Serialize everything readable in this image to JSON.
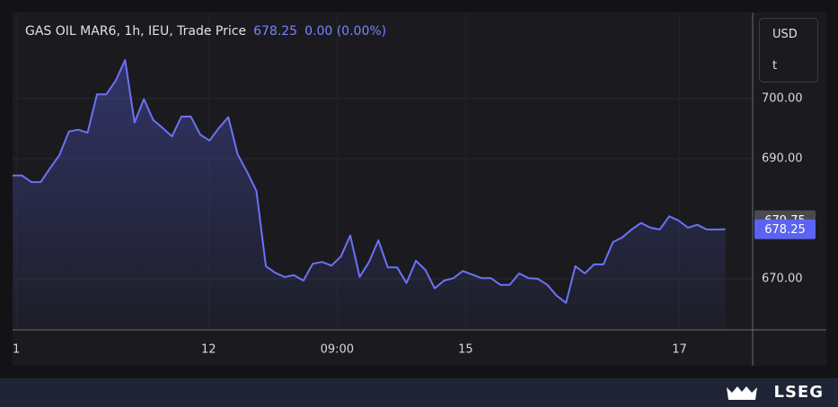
{
  "chart_data": {
    "type": "line",
    "title": "GAS OIL MAR6, 1h, IEU, Trade Price",
    "last_price": "678.25",
    "change": "0.00 (0.00%)",
    "currency": "USD",
    "unit": "t",
    "x": [
      0,
      1,
      2,
      3,
      4,
      5,
      6,
      7,
      8,
      9,
      10,
      11,
      12,
      13,
      14,
      15,
      16,
      17,
      18,
      19,
      20,
      21,
      22,
      23,
      24,
      25,
      26,
      27,
      28,
      29,
      30,
      31,
      32,
      33,
      34,
      35,
      36,
      37,
      38,
      39,
      40,
      41,
      42,
      43,
      44,
      45,
      46,
      47,
      48,
      49,
      50,
      51,
      52,
      53,
      54,
      55,
      56,
      57,
      58,
      59,
      60,
      61,
      62,
      63,
      64,
      65,
      66,
      67,
      68,
      69,
      70,
      71,
      72,
      73,
      74,
      75,
      76
    ],
    "series": [
      {
        "name": "Trade Price",
        "color": "#6b72f5",
        "values": [
          687.2,
          687.2,
          686.1,
          686.1,
          688.4,
          690.6,
          694.5,
          694.8,
          694.3,
          700.7,
          700.7,
          703.0,
          706.4,
          696.0,
          699.9,
          696.4,
          695.1,
          693.7,
          697.0,
          697.0,
          694.0,
          693.0,
          695.1,
          696.9,
          690.7,
          687.8,
          684.6,
          672.1,
          671.0,
          670.3,
          670.6,
          669.7,
          672.5,
          672.8,
          672.2,
          673.7,
          677.2,
          670.3,
          672.8,
          676.4,
          671.9,
          671.9,
          669.3,
          673.0,
          671.5,
          668.4,
          669.7,
          670.1,
          671.3,
          670.7,
          670.1,
          670.1,
          669.0,
          669.0,
          670.9,
          670.1,
          670.0,
          669.0,
          667.2,
          666.0,
          672.1,
          670.9,
          672.4,
          672.4,
          676.1,
          676.9,
          678.2,
          679.3,
          678.5,
          678.2,
          680.4,
          679.7,
          678.5,
          679.0,
          678.2,
          678.2,
          678.25
        ]
      }
    ],
    "xlim": [
      0,
      78.9
    ],
    "xticks": [
      {
        "value": 0.4,
        "label": "1"
      },
      {
        "value": 20.9,
        "label": "12"
      },
      {
        "value": 34.6,
        "label": "09:00"
      },
      {
        "value": 48.3,
        "label": "15"
      },
      {
        "value": 71.1,
        "label": "17"
      }
    ],
    "ylim": [
      661.5,
      714.3
    ],
    "yticks": [
      {
        "value": 670,
        "label": "670.00"
      },
      {
        "value": 690,
        "label": "690.00"
      },
      {
        "value": 700,
        "label": "700.00"
      }
    ],
    "grid": true,
    "price_badges": [
      {
        "value": 679.75,
        "color": "#4a4a50"
      },
      {
        "value": 678.25,
        "color": "#5b64f0"
      }
    ]
  },
  "footer": {
    "brand": "LSEG"
  }
}
